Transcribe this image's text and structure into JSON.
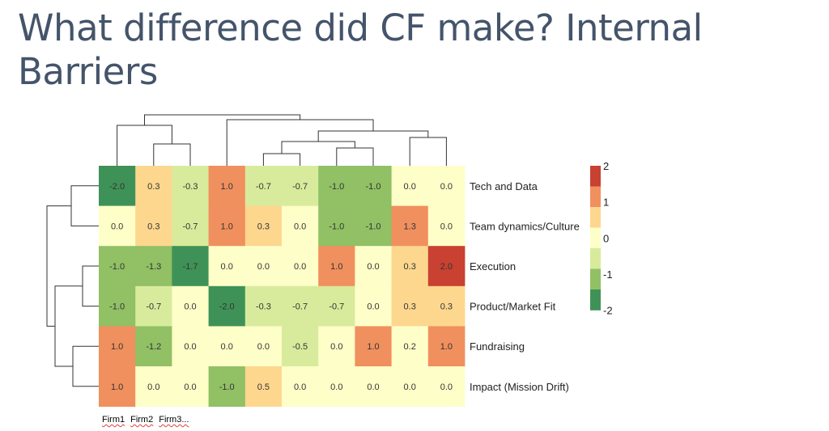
{
  "title": "What difference did CF make? Internal Barriers",
  "chart_data": {
    "type": "heatmap",
    "rows": [
      "Tech and Data",
      "Team dynamics/Culture",
      "Execution",
      "Product/Market Fit",
      "Fundraising",
      "Impact (Mission Drift)"
    ],
    "columns_visible_labels": [
      "Firm1",
      "Firm2",
      "Firm3..."
    ],
    "values": [
      [
        -2.0,
        0.3,
        -0.3,
        1.0,
        -0.7,
        -0.7,
        -1.0,
        -1.0,
        0.0,
        0.0
      ],
      [
        0.0,
        0.3,
        -0.7,
        1.0,
        0.3,
        0.0,
        -1.0,
        -1.0,
        1.3,
        0.0
      ],
      [
        -1.0,
        -1.3,
        -1.7,
        0.0,
        0.0,
        0.0,
        1.0,
        0.0,
        0.3,
        2.0
      ],
      [
        -1.0,
        -0.7,
        0.0,
        -2.0,
        -0.3,
        -0.7,
        -0.7,
        0.0,
        0.3,
        0.3
      ],
      [
        1.0,
        -1.2,
        0.0,
        0.0,
        0.0,
        -0.5,
        0.0,
        1.0,
        0.2,
        1.0
      ],
      [
        1.0,
        0.0,
        0.0,
        -1.0,
        0.5,
        0.0,
        0.0,
        0.0,
        0.0,
        0.0
      ]
    ],
    "color_scale": {
      "min": -2,
      "max": 2,
      "steps": [
        {
          "from": -2.0,
          "to": -1.5,
          "color": "#3f9257"
        },
        {
          "from": -1.5,
          "to": -0.9,
          "color": "#91c065"
        },
        {
          "from": -0.9,
          "to": -0.2,
          "color": "#d8eb9c"
        },
        {
          "from": -0.2,
          "to": 0.2,
          "color": "#fefec8"
        },
        {
          "from": 0.2,
          "to": 0.9,
          "color": "#fdd78e"
        },
        {
          "from": 0.9,
          "to": 1.5,
          "color": "#f0905e"
        },
        {
          "from": 1.5,
          "to": 2.0,
          "color": "#c84131"
        }
      ]
    },
    "legend": {
      "ticks": [
        "2",
        "1",
        "0",
        "-1",
        "-2"
      ],
      "tick_values": [
        2,
        1,
        0,
        -1,
        -2
      ],
      "placement": "right",
      "colors_top_to_bottom": [
        "#c84131",
        "#f0905e",
        "#fdd78e",
        "#fefec8",
        "#d8eb9c",
        "#91c065",
        "#3f9257"
      ]
    },
    "dendrogram": {
      "columns": true,
      "rows": true
    }
  }
}
